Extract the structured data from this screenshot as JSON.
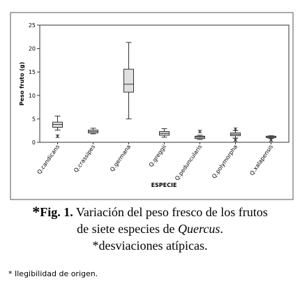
{
  "chart_data": {
    "type": "boxplot",
    "y_label": "Peso fruto (g)",
    "x_label": "ESPECIE",
    "categories": [
      "Q.candicans",
      "Q.crassipes",
      "Q.germana",
      "Q.greggii",
      "Q.peduncularis",
      "Q.polymorpha",
      "Q.xalapensis"
    ],
    "boxes": [
      {
        "whisker_low": 2.6,
        "q1": 3.2,
        "median": 3.8,
        "q3": 4.3,
        "whisker_high": 5.6,
        "outliers": [
          1.3
        ]
      },
      {
        "whisker_low": 1.8,
        "q1": 2.0,
        "median": 2.3,
        "q3": 2.6,
        "whisker_high": 3.0
      },
      {
        "whisker_low": 5.0,
        "q1": 10.7,
        "median": 12.4,
        "q3": 15.6,
        "whisker_high": 21.3
      },
      {
        "whisker_low": 1.1,
        "q1": 1.5,
        "median": 1.9,
        "q3": 2.3,
        "whisker_high": 2.9
      },
      {
        "whisker_low": 0.6,
        "q1": 0.8,
        "median": 1.1,
        "q3": 1.3,
        "whisker_high": 1.5,
        "outliers": [
          2.3
        ]
      },
      {
        "whisker_low": 0.9,
        "q1": 1.4,
        "median": 1.7,
        "q3": 2.0,
        "whisker_high": 2.5,
        "outliers": [
          2.8,
          0.5
        ]
      },
      {
        "whisker_low": 0.8,
        "q1": 1.0,
        "median": 1.15,
        "q3": 1.3,
        "whisker_high": 1.4,
        "outliers": [
          0.5
        ]
      }
    ],
    "color": "#e0e0e0",
    "ylim": [
      0,
      25
    ],
    "yticks": [
      0,
      5,
      10,
      15,
      20,
      25
    ]
  },
  "caption": {
    "marker": "*",
    "label": "Fig. 1.",
    "line1": " Variación del peso fresco de los frutos",
    "line2": "de siete especies de ",
    "italic": "Quercus",
    "line2_end": ".",
    "line3": "*desviaciones atípicas."
  },
  "footnote": "* Ilegibilidad de origen."
}
